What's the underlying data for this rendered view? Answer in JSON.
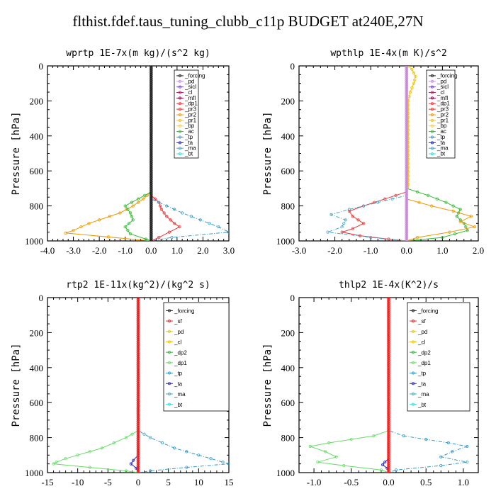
{
  "title": "flthist.fdef.taus_tuning_clubb_c11p  BUDGET at240E,27N",
  "colors": {
    "forcing": "#222222",
    "pd": "#cc88dd",
    "sicl": "#7744cc",
    "cl": "#aa2266",
    "mfl": "#880055",
    "dp1": "#ee3333",
    "pr3": "#ee3333",
    "pr2": "#ee9900",
    "pr1": "#f0c000",
    "bp": "#ffcc33",
    "ac": "#33bb33",
    "tp": "#3399cc",
    "ta": "#2222cc",
    "ma": "#44aacc",
    "bt": "#33dddd",
    "sf": "#ee2222",
    "dp2": "#33bb33",
    "dp1b": "#66dd66"
  },
  "chart_data": [
    {
      "type": "line",
      "title": "wprtp  1E-7x(m kg)/(s^2 kg)",
      "ylabel": "Pressure [hPa]",
      "xlim": [
        -4,
        3
      ],
      "ylim": [
        1000,
        0
      ],
      "xticks": [
        "-4.0",
        "-3.0",
        "-2.0",
        "-1.0",
        "0.0",
        "1.0",
        "2.0",
        "3.0"
      ],
      "xtick_values": [
        -4,
        -3,
        -2,
        -1,
        0,
        1,
        2,
        3
      ],
      "yticks": [
        "0",
        "200",
        "400",
        "600",
        "800",
        "1000"
      ],
      "ytick_values": [
        0,
        200,
        400,
        600,
        800,
        1000
      ],
      "legend": [
        "_forcing",
        "_pd",
        "_sicl",
        "_cl",
        "_mfl",
        "_dp1",
        "_pr3",
        "_pr2",
        "_pr1",
        "_bp",
        "_ac",
        "_tp",
        "_ta",
        "_ma",
        "_bt"
      ],
      "legend_keys": [
        "forcing",
        "pd",
        "sicl",
        "cl",
        "mfl",
        "dp1",
        "pr3",
        "pr2",
        "pr1",
        "bp",
        "ac",
        "tp",
        "ta",
        "ma",
        "bt"
      ],
      "series": [
        {
          "key": "pr2",
          "x": [
            0,
            0,
            -0.3,
            -0.7,
            -1.2,
            -1.6,
            -2.0,
            -2.4,
            -2.7,
            -3.0,
            -3.3,
            0
          ],
          "y": [
            0,
            720,
            760,
            800,
            840,
            860,
            880,
            900,
            920,
            940,
            955,
            1000
          ]
        },
        {
          "key": "ac",
          "x": [
            0,
            0,
            -0.5,
            -1.0,
            -0.8,
            -0.7,
            -1.0,
            -0.8,
            -0.2,
            0
          ],
          "y": [
            0,
            720,
            760,
            800,
            840,
            880,
            920,
            960,
            990,
            1000
          ]
        },
        {
          "key": "dp1",
          "x": [
            0,
            0,
            0.3,
            0.4,
            0.6,
            0.9,
            1.1,
            0.7,
            0.3,
            0
          ],
          "y": [
            0,
            740,
            780,
            820,
            860,
            900,
            920,
            950,
            980,
            1000
          ]
        },
        {
          "key": "tp",
          "x": [
            0,
            0,
            0.6,
            1.2,
            1.9,
            2.6,
            3.0,
            0.8,
            0
          ],
          "y": [
            0,
            760,
            800,
            840,
            880,
            920,
            950,
            980,
            1000
          ]
        },
        {
          "key": "forcing",
          "x": [
            0,
            0
          ],
          "y": [
            0,
            1000
          ]
        }
      ]
    },
    {
      "type": "line",
      "title": "wpthlp  1E-4x(m K)/s^2",
      "ylabel": "Pressure [hPa]",
      "xlim": [
        -3,
        2
      ],
      "ylim": [
        1000,
        0
      ],
      "xticks": [
        "-3.0",
        "-2.0",
        "-1.0",
        "0.0",
        "1.0",
        "2.0"
      ],
      "xtick_values": [
        -3,
        -2,
        -1,
        0,
        1,
        2
      ],
      "yticks": [
        "0",
        "200",
        "400",
        "600",
        "800",
        "1000"
      ],
      "ytick_values": [
        0,
        200,
        400,
        600,
        800,
        1000
      ],
      "legend": [
        "_forcing",
        "_pd",
        "_sicl",
        "_cl",
        "_mfl",
        "_dp1",
        "_pr3",
        "_pr2",
        "_pr1",
        "_bp",
        "_ac",
        "_tp",
        "_ta",
        "_ma",
        "_bt"
      ],
      "legend_keys": [
        "forcing",
        "pd",
        "sicl",
        "cl",
        "mfl",
        "dp1",
        "pr3",
        "pr2",
        "pr1",
        "bp",
        "ac",
        "tp",
        "ta",
        "ma",
        "bt"
      ],
      "series": [
        {
          "key": "pr1",
          "x": [
            0.05,
            0.15,
            0.25,
            0.2,
            0.1,
            0.05,
            0.05
          ],
          "y": [
            0,
            20,
            60,
            100,
            150,
            200,
            700
          ]
        },
        {
          "key": "dp1",
          "x": [
            0,
            0,
            -0.6,
            -1.2,
            -1.6,
            -1.5,
            -1.2,
            -1.5,
            -1.8,
            -1.3,
            -0.5,
            0
          ],
          "y": [
            0,
            720,
            760,
            800,
            830,
            860,
            900,
            930,
            950,
            970,
            990,
            1000
          ]
        },
        {
          "key": "ma",
          "x": [
            0,
            0,
            -0.8,
            -1.6,
            -2.1,
            -1.7,
            -1.8,
            -2.2,
            -1.0,
            0
          ],
          "y": [
            0,
            740,
            780,
            820,
            850,
            880,
            920,
            950,
            980,
            1000
          ]
        },
        {
          "key": "ac",
          "x": [
            0,
            0,
            0.6,
            1.1,
            1.5,
            1.4,
            1.6,
            1.7,
            1.0,
            0
          ],
          "y": [
            0,
            700,
            740,
            780,
            820,
            860,
            900,
            940,
            980,
            1000
          ]
        },
        {
          "key": "pr2",
          "x": [
            0,
            0,
            0.7,
            1.3,
            1.8,
            1.5,
            1.9,
            1.2,
            0.3,
            0
          ],
          "y": [
            0,
            760,
            800,
            830,
            860,
            890,
            920,
            950,
            980,
            1000
          ]
        },
        {
          "key": "pd",
          "x": [
            0,
            0
          ],
          "y": [
            0,
            1000
          ]
        }
      ]
    },
    {
      "type": "line",
      "title": "rtp2  1E-11x(kg^2)/(kg^2 s)",
      "ylabel": "Pressure [hPa]",
      "xlim": [
        -15,
        15
      ],
      "ylim": [
        1000,
        0
      ],
      "xticks": [
        "-15",
        "-10",
        "-5",
        "0",
        "5",
        "10",
        "15"
      ],
      "xtick_values": [
        -15,
        -10,
        -5,
        0,
        5,
        10,
        15
      ],
      "yticks": [
        "0",
        "200",
        "400",
        "600",
        "800",
        "1000"
      ],
      "ytick_values": [
        0,
        200,
        400,
        600,
        800,
        1000
      ],
      "legend": [
        "_forcing",
        "_sf",
        "_pd",
        "_cl",
        "_dp2",
        "_dp1",
        "_tp",
        "_ta",
        "_ma",
        "_bt"
      ],
      "legend_keys": [
        "forcing",
        "sf",
        "pr1",
        "pr1",
        "dp2",
        "dp1b",
        "tp",
        "ta",
        "ma",
        "bt"
      ],
      "series": [
        {
          "key": "dp1b",
          "x": [
            0,
            0,
            -2,
            -4,
            -6,
            -8,
            -10,
            -12,
            -13.5,
            -14,
            -8,
            -2,
            0
          ],
          "y": [
            0,
            760,
            800,
            830,
            860,
            880,
            900,
            920,
            940,
            950,
            970,
            990,
            1000
          ]
        },
        {
          "key": "tp",
          "x": [
            0,
            0,
            2,
            4,
            6,
            8,
            10,
            12,
            14,
            15,
            8,
            2,
            0
          ],
          "y": [
            0,
            760,
            800,
            830,
            860,
            880,
            900,
            920,
            940,
            950,
            970,
            990,
            1000
          ]
        },
        {
          "key": "ta",
          "x": [
            0,
            0,
            -0.8,
            -1.2,
            -0.3,
            0
          ],
          "y": [
            0,
            900,
            930,
            950,
            975,
            1000
          ]
        },
        {
          "key": "sf",
          "x": [
            0,
            0
          ],
          "y": [
            0,
            1000
          ]
        }
      ]
    },
    {
      "type": "line",
      "title": "thlp2  1E-4x(K^2)/s",
      "ylabel": "Pressure [hPa]",
      "xlim": [
        -1.2,
        1.2
      ],
      "ylim": [
        1000,
        0
      ],
      "xticks": [
        "-1.0",
        "-0.5",
        "0.0",
        "0.5",
        "1.0"
      ],
      "xtick_values": [
        -1,
        -0.5,
        0,
        0.5,
        1
      ],
      "yticks": [
        "0",
        "200",
        "400",
        "600",
        "800",
        "1000"
      ],
      "ytick_values": [
        0,
        200,
        400,
        600,
        800,
        1000
      ],
      "legend": [
        "_forcing",
        "_sf",
        "_pd",
        "_cl",
        "_dp2",
        "_dp1",
        "_tp",
        "_ta",
        "_ma",
        "_bt"
      ],
      "legend_keys": [
        "forcing",
        "sf",
        "pr1",
        "pr1",
        "dp2",
        "dp1b",
        "tp",
        "ta",
        "ma",
        "bt"
      ],
      "series": [
        {
          "key": "dp1b",
          "x": [
            0,
            0,
            -0.2,
            -0.5,
            -0.8,
            -1.05,
            -0.85,
            -0.7,
            -0.95,
            -0.6,
            -0.1,
            0
          ],
          "y": [
            0,
            760,
            790,
            810,
            830,
            850,
            880,
            910,
            940,
            960,
            985,
            1000
          ]
        },
        {
          "key": "tp",
          "x": [
            0,
            0,
            0.2,
            0.5,
            0.8,
            1.05,
            0.85,
            0.7,
            1.05,
            0.7,
            0.1,
            0
          ],
          "y": [
            0,
            760,
            790,
            810,
            830,
            850,
            880,
            910,
            940,
            960,
            985,
            1000
          ]
        },
        {
          "key": "ta",
          "x": [
            0,
            0,
            -0.05,
            -0.08,
            -0.02,
            0
          ],
          "y": [
            0,
            920,
            940,
            955,
            975,
            1000
          ]
        },
        {
          "key": "sf",
          "x": [
            0,
            0
          ],
          "y": [
            0,
            1000
          ]
        }
      ]
    }
  ]
}
